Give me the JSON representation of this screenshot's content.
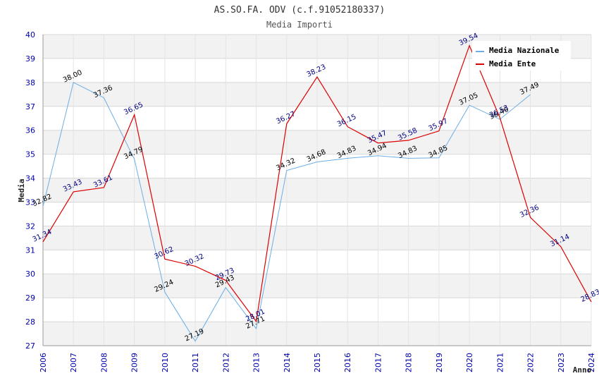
{
  "chart_data": {
    "type": "line",
    "title": "AS.SO.FA. ODV (c.f.91052180337)",
    "subtitle": "Media Importi",
    "xlabel": "Anno",
    "ylabel": "Media",
    "ylim": [
      27,
      40
    ],
    "yticks": [
      "27",
      "28",
      "29",
      "30",
      "31",
      "32",
      "33",
      "34",
      "35",
      "36",
      "37",
      "38",
      "39",
      "40"
    ],
    "x": [
      "2006",
      "2007",
      "2008",
      "2009",
      "2010",
      "2011",
      "2012",
      "2013",
      "2014",
      "2015",
      "2016",
      "2017",
      "2018",
      "2019",
      "2020",
      "2021",
      "2022",
      "2023",
      "2024"
    ],
    "series": [
      {
        "name": "Media Nazionale",
        "color": "#6aaee6",
        "values": [
          32.82,
          38.0,
          37.36,
          34.79,
          29.24,
          27.19,
          29.43,
          27.71,
          34.32,
          34.68,
          34.83,
          34.94,
          34.83,
          34.85,
          37.05,
          36.46,
          37.49,
          null,
          null
        ],
        "labels": [
          "32.82",
          "38.00",
          "37.36",
          "34.79",
          "29.24",
          "27.19",
          "29.43",
          "27.71",
          "34.32",
          "34.68",
          "34.83",
          "34.94",
          "34.83",
          "34.85",
          "37.05",
          "36.46",
          "37.49",
          "",
          ""
        ]
      },
      {
        "name": "Media Ente",
        "color": "#dd0000",
        "values": [
          31.34,
          33.43,
          33.61,
          36.65,
          30.62,
          30.32,
          29.73,
          28.01,
          36.27,
          38.23,
          36.15,
          35.47,
          35.58,
          35.97,
          39.54,
          36.53,
          32.36,
          31.14,
          28.83
        ],
        "labels": [
          "31.34",
          "33.43",
          "33.61",
          "36.65",
          "30.62",
          "30.32",
          "29.73",
          "28.01",
          "36.27",
          "38.23",
          "36.15",
          "35.47",
          "35.58",
          "35.97",
          "39.54",
          "36.53",
          "32.36",
          "31.14",
          "28.83"
        ]
      }
    ],
    "legend_position": "top-right"
  }
}
